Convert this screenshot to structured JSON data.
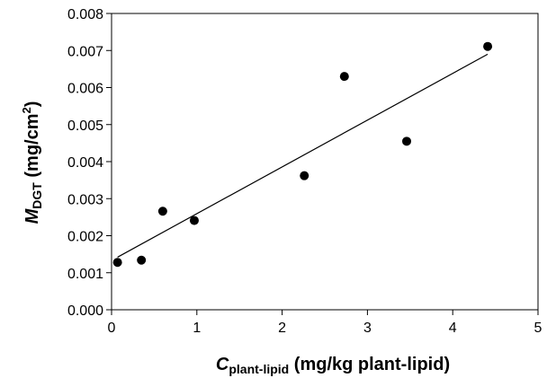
{
  "chart_data": {
    "type": "scatter",
    "title": "",
    "xlabel": {
      "symbol": "C",
      "subscript": "plant-lipid",
      "rest": " (mg/kg plant-lipid)"
    },
    "ylabel": {
      "symbol": "M",
      "subscript": "DGT",
      "rest_before_sup": " (mg/cm",
      "superscript": "2",
      "rest_after_sup": ")"
    },
    "xlim": [
      0,
      5
    ],
    "ylim": [
      0,
      0.008
    ],
    "x_ticks": [
      "0",
      "1",
      "2",
      "3",
      "4",
      "5"
    ],
    "y_ticks": [
      "0.000",
      "0.001",
      "0.002",
      "0.003",
      "0.004",
      "0.005",
      "0.006",
      "0.007",
      "0.008"
    ],
    "grid": false,
    "legend": "none",
    "series": [
      {
        "points": [
          {
            "x": 0.07,
            "y": 0.00128
          },
          {
            "x": 0.35,
            "y": 0.00134
          },
          {
            "x": 0.6,
            "y": 0.00266
          },
          {
            "x": 0.97,
            "y": 0.00241
          },
          {
            "x": 2.26,
            "y": 0.00362
          },
          {
            "x": 2.73,
            "y": 0.0063
          },
          {
            "x": 3.46,
            "y": 0.00455
          },
          {
            "x": 4.41,
            "y": 0.00711
          }
        ]
      }
    ],
    "trendline": {
      "type": "linear",
      "x": [
        0.07,
        4.41
      ],
      "y": [
        0.00142,
        0.0069
      ]
    },
    "colors": {
      "points": "#000000",
      "line": "#000000",
      "axis": "#000000"
    }
  }
}
